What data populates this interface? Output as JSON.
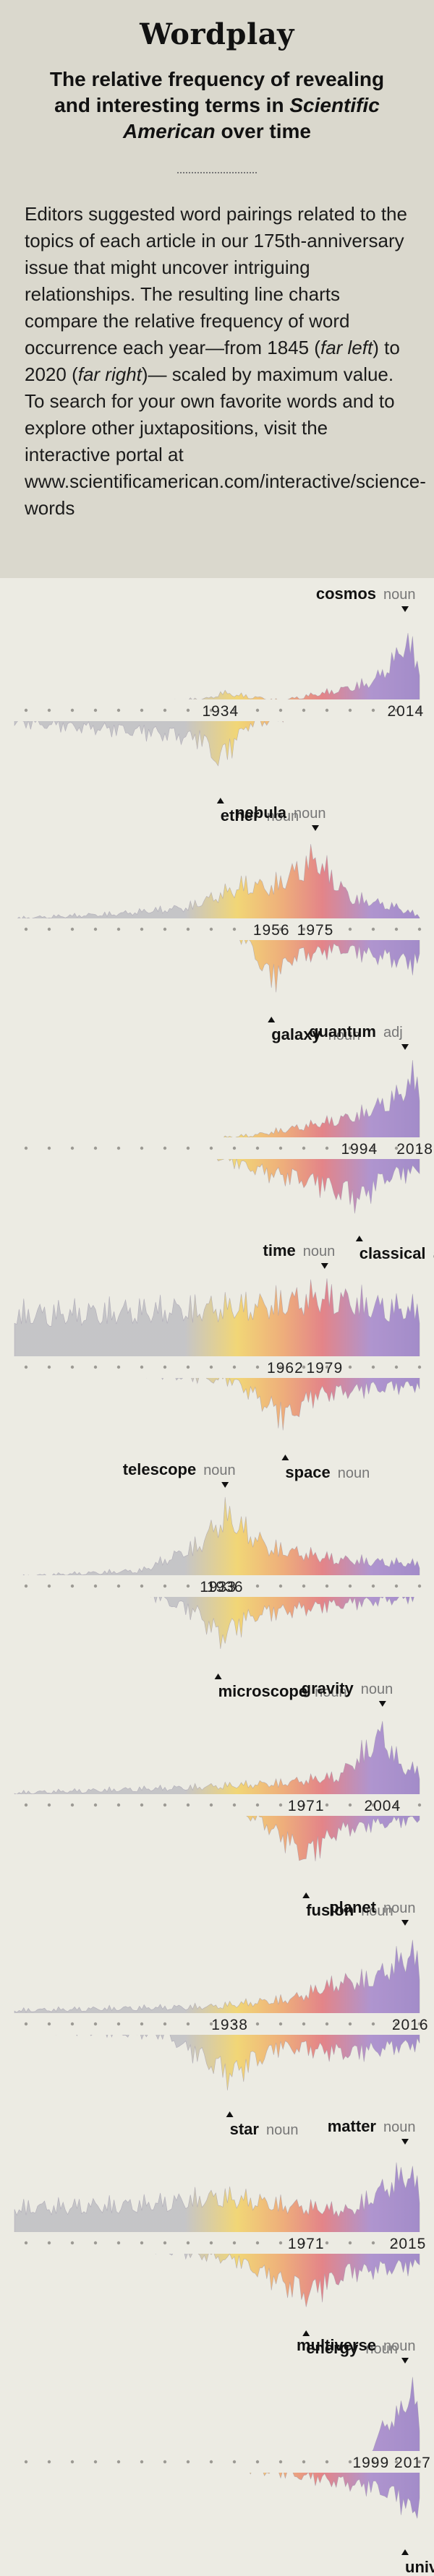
{
  "header": {
    "title": "Wordplay",
    "subtitle_part1": "The relative frequency of revealing and interesting terms in ",
    "subtitle_italic": "Scientific American",
    "subtitle_part2": " over time",
    "intro_1": "Editors suggested word pairings related to the topics of each article in our 175th-anniversary issue that might uncover intriguing relationships. The resulting line charts compare the relative frequency of word occurrence each year—from 1845 (",
    "intro_far_left": "far left",
    "intro_2": ") to 2020 (",
    "intro_far_right": "far right",
    "intro_3": ")— scaled by maximum value. To search for your own favorite words and to explore other juxtapositions, visit the interactive portal at www.scientificamerican.com/interactive/science-words"
  },
  "chart_data": [
    {
      "type": "area",
      "top": {
        "word": "cosmos",
        "pos": "noun",
        "peak_year": 2014,
        "anchors": [
          [
            1845,
            0.03
          ],
          [
            1900,
            0.03
          ],
          [
            1930,
            0.1
          ],
          [
            1934,
            0.18
          ],
          [
            1960,
            0.06
          ],
          [
            1985,
            0.22
          ],
          [
            2000,
            0.35
          ],
          [
            2010,
            0.72
          ],
          [
            2014,
            1
          ],
          [
            2020,
            0.6
          ]
        ]
      },
      "bottom": {
        "word": "ether",
        "pos": "noun",
        "peak_year": 1934,
        "anchors": [
          [
            1845,
            0.32
          ],
          [
            1880,
            0.42
          ],
          [
            1905,
            0.5
          ],
          [
            1925,
            0.6
          ],
          [
            1934,
            1
          ],
          [
            1945,
            0.38
          ],
          [
            1965,
            0.2
          ],
          [
            1985,
            0.14
          ],
          [
            2020,
            0.1
          ]
        ]
      },
      "years": [
        "1934",
        "2014"
      ]
    },
    {
      "type": "area",
      "top": {
        "word": "nebula",
        "pos": "noun",
        "peak_year": 1975,
        "anchors": [
          [
            1845,
            0.08
          ],
          [
            1890,
            0.15
          ],
          [
            1920,
            0.25
          ],
          [
            1945,
            0.6
          ],
          [
            1956,
            0.55
          ],
          [
            1975,
            1
          ],
          [
            1990,
            0.4
          ],
          [
            2010,
            0.25
          ],
          [
            2020,
            0.12
          ]
        ]
      },
      "bottom": {
        "word": "galaxy",
        "pos": "noun",
        "peak_year": 1956,
        "anchors": [
          [
            1845,
            0.04
          ],
          [
            1920,
            0.08
          ],
          [
            1945,
            0.3
          ],
          [
            1956,
            1
          ],
          [
            1965,
            0.6
          ],
          [
            1985,
            0.45
          ],
          [
            2005,
            0.6
          ],
          [
            2020,
            0.72
          ]
        ]
      },
      "years": [
        "1956",
        "1975"
      ]
    },
    {
      "type": "area",
      "top": {
        "word": "quantum",
        "pos": "adj",
        "peak_year": 2018,
        "anchors": [
          [
            1845,
            0.01
          ],
          [
            1920,
            0.03
          ],
          [
            1950,
            0.12
          ],
          [
            1975,
            0.28
          ],
          [
            1994,
            0.42
          ],
          [
            2010,
            0.7
          ],
          [
            2018,
            1
          ],
          [
            2020,
            0.85
          ]
        ]
      },
      "bottom": {
        "word": "classical",
        "pos": "adj",
        "peak_year": 1994,
        "anchors": [
          [
            1845,
            0.06
          ],
          [
            1920,
            0.1
          ],
          [
            1955,
            0.55
          ],
          [
            1975,
            0.7
          ],
          [
            1994,
            1
          ],
          [
            2005,
            0.62
          ],
          [
            2020,
            0.5
          ]
        ]
      },
      "years": [
        "1994",
        "2018"
      ]
    },
    {
      "type": "area",
      "top": {
        "word": "time",
        "pos": "noun",
        "peak_year": 1979,
        "anchors": [
          [
            1845,
            0.72
          ],
          [
            1880,
            0.75
          ],
          [
            1920,
            0.8
          ],
          [
            1950,
            0.85
          ],
          [
            1979,
            1
          ],
          [
            2000,
            0.85
          ],
          [
            2020,
            0.78
          ]
        ]
      },
      "bottom": {
        "word": "space",
        "pos": "noun",
        "peak_year": 1962,
        "anchors": [
          [
            1845,
            0.18
          ],
          [
            1900,
            0.22
          ],
          [
            1940,
            0.35
          ],
          [
            1962,
            1
          ],
          [
            1975,
            0.6
          ],
          [
            1995,
            0.5
          ],
          [
            2020,
            0.42
          ]
        ]
      },
      "years": [
        "1962",
        "1979"
      ]
    },
    {
      "type": "area",
      "top": {
        "word": "telescope",
        "pos": "noun",
        "peak_year": 1936,
        "anchors": [
          [
            1845,
            0.06
          ],
          [
            1900,
            0.15
          ],
          [
            1925,
            0.55
          ],
          [
            1936,
            1
          ],
          [
            1955,
            0.5
          ],
          [
            1985,
            0.32
          ],
          [
            2020,
            0.25
          ]
        ]
      },
      "bottom": {
        "word": "microscope",
        "pos": "noun",
        "peak_year": 1933,
        "anchors": [
          [
            1845,
            0.1
          ],
          [
            1900,
            0.2
          ],
          [
            1925,
            0.6
          ],
          [
            1933,
            1
          ],
          [
            1950,
            0.6
          ],
          [
            1980,
            0.45
          ],
          [
            2020,
            0.3
          ]
        ]
      },
      "years": [
        "1933",
        "1936"
      ]
    },
    {
      "type": "area",
      "top": {
        "word": "gravity",
        "pos": "noun",
        "peak_year": 2004,
        "anchors": [
          [
            1845,
            0.1
          ],
          [
            1920,
            0.18
          ],
          [
            1960,
            0.25
          ],
          [
            1985,
            0.35
          ],
          [
            2004,
            1
          ],
          [
            2012,
            0.5
          ],
          [
            2020,
            0.42
          ]
        ]
      },
      "bottom": {
        "word": "fusion",
        "pos": "noun",
        "peak_year": 1971,
        "anchors": [
          [
            1845,
            0.06
          ],
          [
            1930,
            0.08
          ],
          [
            1950,
            0.35
          ],
          [
            1971,
            1
          ],
          [
            1985,
            0.55
          ],
          [
            2000,
            0.45
          ],
          [
            2020,
            0.35
          ]
        ]
      },
      "years": [
        "1971",
        "2004"
      ]
    },
    {
      "type": "area",
      "top": {
        "word": "planet",
        "pos": "noun",
        "peak_year": 2016,
        "anchors": [
          [
            1845,
            0.12
          ],
          [
            1930,
            0.18
          ],
          [
            1965,
            0.3
          ],
          [
            1985,
            0.55
          ],
          [
            2000,
            0.6
          ],
          [
            2016,
            1
          ],
          [
            2020,
            0.8
          ]
        ]
      },
      "bottom": {
        "word": "star",
        "pos": "noun",
        "peak_year": 1938,
        "anchors": [
          [
            1845,
            0.2
          ],
          [
            1910,
            0.3
          ],
          [
            1938,
            1
          ],
          [
            1960,
            0.5
          ],
          [
            1990,
            0.62
          ],
          [
            2020,
            0.45
          ]
        ]
      },
      "years": [
        "1938",
        "2016"
      ]
    },
    {
      "type": "area",
      "top": {
        "word": "matter",
        "pos": "noun",
        "peak_year": 2015,
        "anchors": [
          [
            1845,
            0.45
          ],
          [
            1900,
            0.5
          ],
          [
            1935,
            0.62
          ],
          [
            1960,
            0.5
          ],
          [
            1990,
            0.4
          ],
          [
            2015,
            1
          ],
          [
            2020,
            0.7
          ]
        ]
      },
      "bottom": {
        "word": "energy",
        "pos": "noun",
        "peak_year": 1971,
        "anchors": [
          [
            1845,
            0.12
          ],
          [
            1900,
            0.2
          ],
          [
            1940,
            0.4
          ],
          [
            1971,
            1
          ],
          [
            1990,
            0.62
          ],
          [
            2020,
            0.5
          ]
        ]
      },
      "years": [
        "1971",
        "2015"
      ]
    },
    {
      "type": "area",
      "top": {
        "word": "multiverse",
        "pos": "noun",
        "peak_year": 2017,
        "anchors": [
          [
            1845,
            0.0
          ],
          [
            1990,
            0.0
          ],
          [
            1999,
            0.05
          ],
          [
            2004,
            0.45
          ],
          [
            2010,
            0.6
          ],
          [
            2017,
            1
          ],
          [
            2020,
            0.5
          ]
        ]
      },
      "bottom": {
        "word": "universe",
        "pos": "noun",
        "peak_year": 2017,
        "anchors": [
          [
            1845,
            0.08
          ],
          [
            1920,
            0.15
          ],
          [
            1960,
            0.3
          ],
          [
            1999,
            0.55
          ],
          [
            2010,
            0.7
          ],
          [
            2017,
            1
          ],
          [
            2020,
            0.8
          ]
        ]
      },
      "years": [
        "1999",
        "2017"
      ]
    }
  ],
  "colors": {
    "early": "#b8b8be",
    "mid_yellow": "#f3cf52",
    "orange": "#ef9b58",
    "red": "#e0626a",
    "purple": "#9b78c8",
    "late": "#8a6cc0",
    "band_bg": "#ecebe3",
    "header_bg": "#dad8cd"
  }
}
